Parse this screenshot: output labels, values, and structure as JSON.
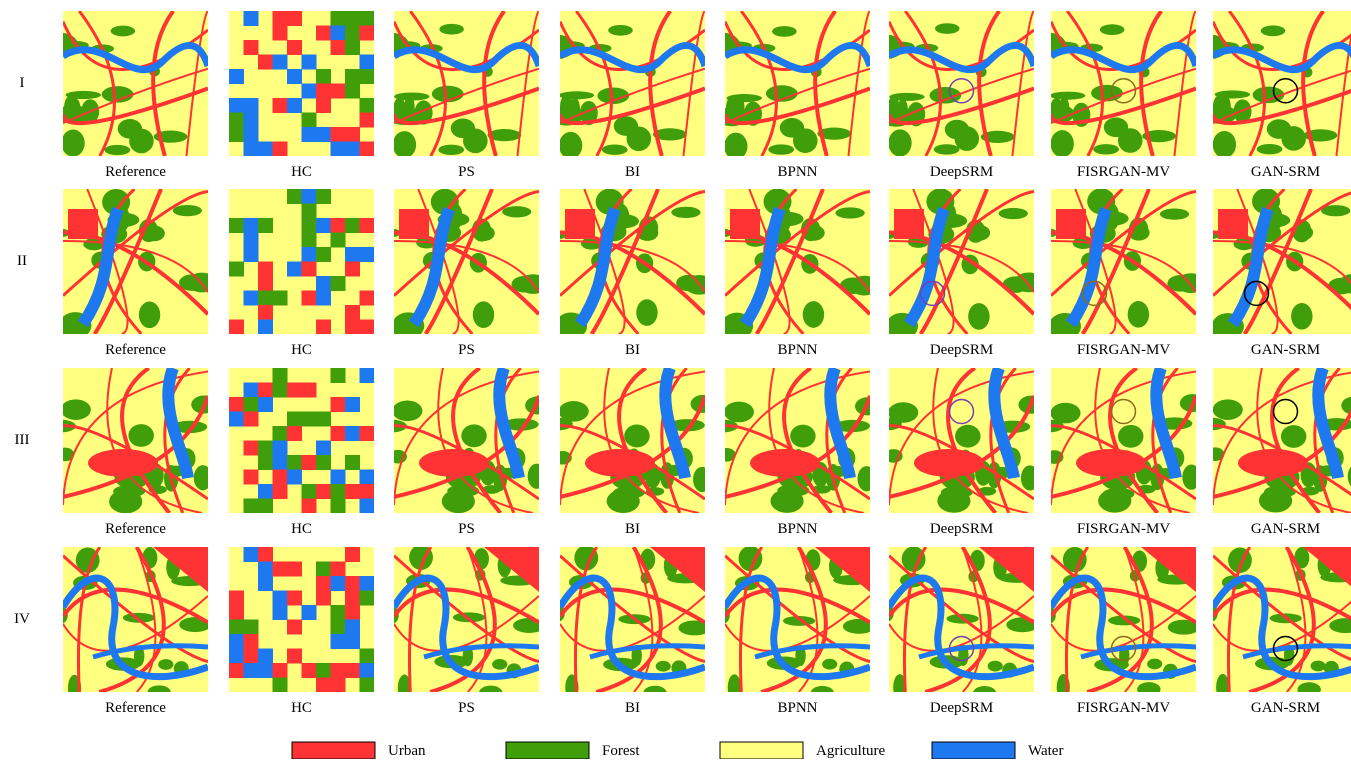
{
  "rows": [
    "I",
    "II",
    "III",
    "IV"
  ],
  "columns": [
    "Reference",
    "HC",
    "PS",
    "BI",
    "BPNN",
    "DeepSRM",
    "FISRGAN-MV",
    "GAN-SRM"
  ],
  "legend": [
    {
      "label": "Urban",
      "color": "#ff3333"
    },
    {
      "label": "Forest",
      "color": "#3f9e0a"
    },
    {
      "label": "Agriculture",
      "color": "#ffff80"
    },
    {
      "label": "Water",
      "color": "#1e78f0"
    }
  ]
}
